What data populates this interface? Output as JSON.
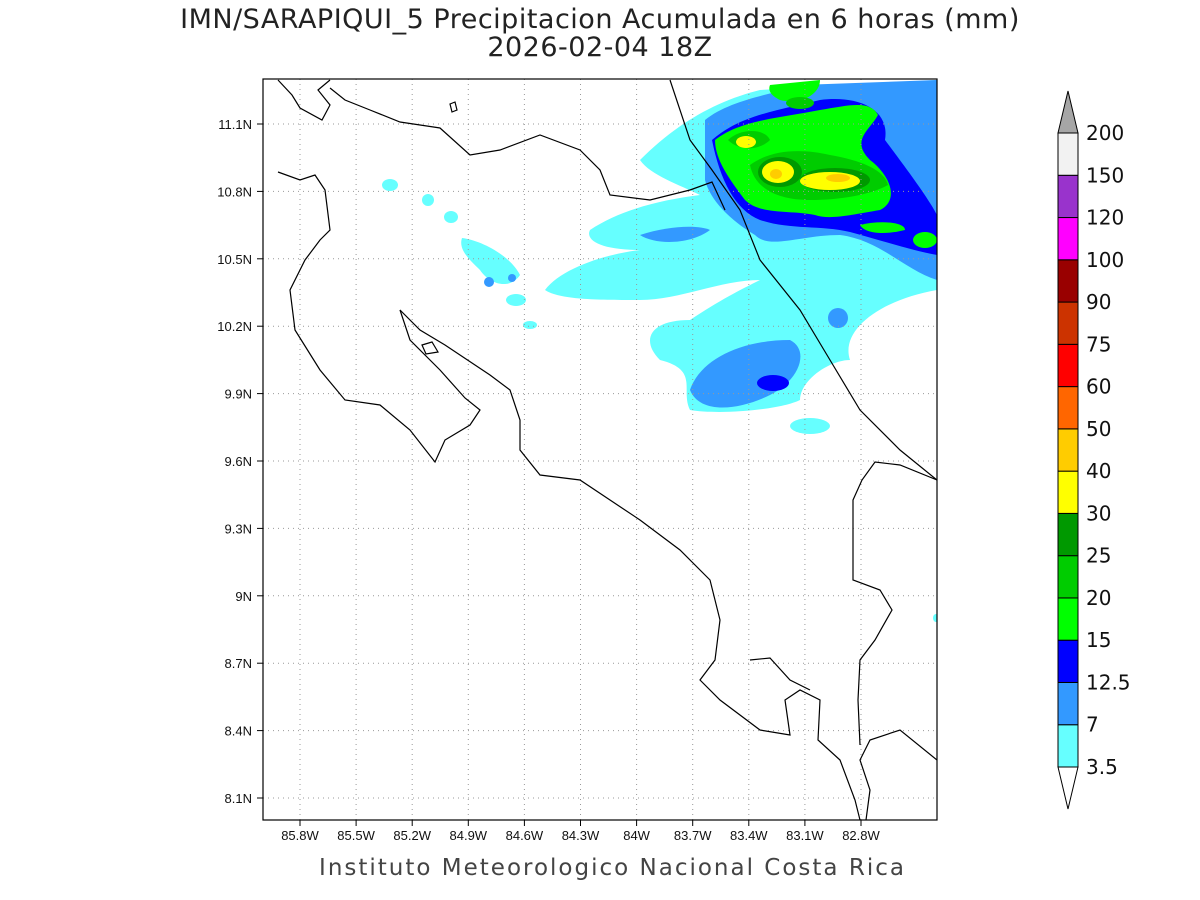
{
  "header": {
    "title": "IMN/SARAPIQUI_5 Precipitacion Acumulada en 6 horas (mm)",
    "subtitle": "2026-02-04 18Z"
  },
  "footer": {
    "credit": "Instituto Meteorologico Nacional Costa Rica"
  },
  "chart_data": {
    "type": "heatmap",
    "title": "IMN/SARAPIQUI_5 Precipitacion Acumulada en 6 horas (mm)",
    "subtitle": "2026-02-04 18Z",
    "x_ticks": [
      "85.8W",
      "85.5W",
      "85.2W",
      "84.9W",
      "84.6W",
      "84.3W",
      "84W",
      "83.7W",
      "83.4W",
      "83.1W",
      "82.8W"
    ],
    "y_ticks": [
      "11.1N",
      "10.8N",
      "10.5N",
      "10.2N",
      "9.9N",
      "9.6N",
      "9.3N",
      "9N",
      "8.7N",
      "8.4N",
      "8.1N"
    ],
    "xlim": [
      -86.13,
      -82.52
    ],
    "ylim": [
      8.0,
      11.3
    ],
    "grid": true,
    "colorbar": {
      "placement": "right",
      "levels": [
        "3.5",
        "7",
        "12.5",
        "15",
        "20",
        "25",
        "30",
        "40",
        "50",
        "60",
        "75",
        "90",
        "100",
        "120",
        "150",
        "200"
      ],
      "colors": [
        "#66ffff",
        "#3399ff",
        "#0000ff",
        "#00ff00",
        "#00cc00",
        "#009900",
        "#ffff00",
        "#ffcc00",
        "#ff6600",
        "#ff0000",
        "#cc3300",
        "#990000",
        "#ff00ff",
        "#9933cc",
        "#f2f2f2"
      ],
      "over_color": "#a6a6a6",
      "under_color": "#ffffff"
    }
  }
}
